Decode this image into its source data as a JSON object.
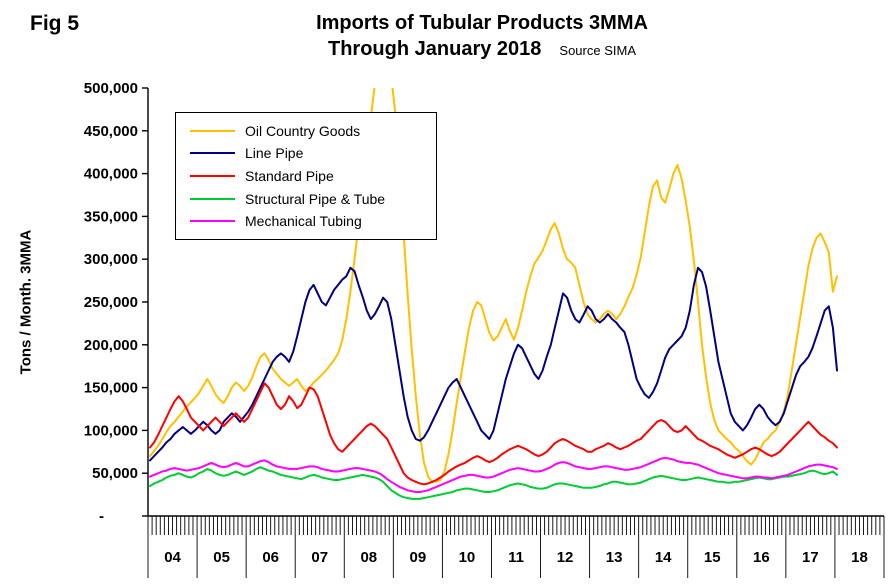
{
  "figure_label": "Fig 5",
  "header": {
    "title_line1": "Imports of Tubular Products 3MMA",
    "title_line2": "Through January 2018",
    "source": "Source SIMA"
  },
  "y_axis_title": "Tons / Month. 3MMA",
  "chart_data": {
    "type": "line",
    "title": "Imports of Tubular Products 3MMA Through January 2018",
    "ylabel": "Tons / Month. 3MMA",
    "ylim": [
      0,
      500000
    ],
    "y_tick_interval": 50000,
    "y_tick_labels": [
      "-",
      "50,000",
      "100,000",
      "150,000",
      "200,000",
      "250,000",
      "300,000",
      "350,000",
      "400,000",
      "450,000",
      "500,000"
    ],
    "x_year_labels": [
      "04",
      "05",
      "06",
      "07",
      "08",
      "09",
      "10",
      "11",
      "12",
      "13",
      "14",
      "15",
      "16",
      "17",
      "18"
    ],
    "x_start": "2004-01",
    "x_end": "2018-01",
    "points_per_year": 12,
    "values_in_thousands": true,
    "values_unit": "thousand tons per month (3-month moving average)",
    "grid": false,
    "legend_position": "upper-left",
    "series": [
      {
        "name": "Oil Country Goods",
        "color": "#FFC000",
        "values": [
          70,
          76,
          82,
          90,
          98,
          105,
          110,
          116,
          122,
          128,
          133,
          138,
          144,
          152,
          160,
          152,
          142,
          136,
          132,
          140,
          150,
          156,
          152,
          146,
          152,
          162,
          175,
          186,
          190,
          182,
          172,
          166,
          160,
          156,
          152,
          156,
          160,
          152,
          146,
          150,
          156,
          160,
          165,
          170,
          176,
          182,
          190,
          205,
          230,
          262,
          300,
          340,
          382,
          425,
          465,
          505,
          525,
          535,
          525,
          512,
          470,
          400,
          330,
          260,
          195,
          140,
          95,
          62,
          46,
          40,
          40,
          42,
          52,
          72,
          100,
          132,
          162,
          192,
          220,
          240,
          250,
          246,
          230,
          214,
          205,
          210,
          220,
          230,
          216,
          206,
          220,
          240,
          262,
          280,
          295,
          302,
          310,
          322,
          335,
          342,
          330,
          312,
          300,
          296,
          290,
          270,
          250,
          236,
          230,
          226,
          230,
          236,
          240,
          236,
          230,
          236,
          245,
          256,
          266,
          282,
          302,
          332,
          362,
          385,
          392,
          372,
          366,
          382,
          400,
          410,
          394,
          368,
          338,
          298,
          250,
          200,
          162,
          132,
          112,
          100,
          95,
          90,
          86,
          80,
          76,
          70,
          64,
          60,
          66,
          76,
          86,
          90,
          96,
          100,
          110,
          122,
          142,
          172,
          202,
          232,
          262,
          292,
          312,
          325,
          330,
          320,
          308,
          262,
          280
        ]
      },
      {
        "name": "Line Pipe",
        "color": "#000080",
        "values": [
          65,
          70,
          75,
          80,
          86,
          90,
          96,
          100,
          104,
          100,
          96,
          100,
          105,
          110,
          106,
          100,
          96,
          100,
          110,
          115,
          120,
          116,
          110,
          116,
          122,
          130,
          140,
          150,
          160,
          170,
          180,
          186,
          190,
          186,
          180,
          192,
          210,
          230,
          250,
          264,
          270,
          260,
          250,
          246,
          255,
          264,
          270,
          276,
          280,
          290,
          286,
          270,
          256,
          240,
          230,
          236,
          245,
          255,
          250,
          230,
          200,
          170,
          140,
          116,
          100,
          90,
          88,
          92,
          100,
          110,
          120,
          130,
          140,
          150,
          156,
          160,
          150,
          140,
          130,
          120,
          110,
          100,
          95,
          90,
          100,
          120,
          140,
          160,
          175,
          190,
          200,
          196,
          186,
          176,
          166,
          160,
          170,
          186,
          200,
          220,
          240,
          260,
          255,
          240,
          230,
          226,
          235,
          245,
          240,
          230,
          226,
          230,
          236,
          230,
          226,
          220,
          215,
          200,
          180,
          160,
          150,
          142,
          138,
          145,
          155,
          170,
          185,
          195,
          200,
          205,
          210,
          220,
          240,
          270,
          290,
          285,
          268,
          240,
          210,
          180,
          160,
          140,
          120,
          110,
          105,
          100,
          106,
          115,
          125,
          130,
          125,
          116,
          110,
          106,
          110,
          120,
          135,
          150,
          165,
          175,
          180,
          186,
          196,
          210,
          225,
          240,
          245,
          220,
          170
        ]
      },
      {
        "name": "Standard Pipe",
        "color": "#FF0000",
        "values": [
          80,
          86,
          95,
          105,
          115,
          125,
          134,
          140,
          134,
          125,
          115,
          110,
          105,
          100,
          105,
          110,
          115,
          110,
          105,
          110,
          115,
          120,
          115,
          110,
          115,
          125,
          135,
          145,
          155,
          150,
          140,
          130,
          125,
          130,
          140,
          134,
          126,
          130,
          140,
          150,
          148,
          140,
          125,
          110,
          95,
          85,
          78,
          75,
          80,
          85,
          90,
          95,
          100,
          105,
          108,
          105,
          100,
          95,
          90,
          80,
          70,
          60,
          50,
          45,
          42,
          40,
          38,
          37,
          38,
          40,
          42,
          45,
          48,
          52,
          55,
          58,
          60,
          62,
          65,
          68,
          70,
          68,
          65,
          63,
          65,
          68,
          72,
          75,
          78,
          80,
          82,
          80,
          78,
          75,
          72,
          70,
          72,
          75,
          80,
          85,
          88,
          90,
          88,
          85,
          82,
          80,
          78,
          75,
          75,
          78,
          80,
          82,
          85,
          83,
          80,
          78,
          80,
          82,
          85,
          88,
          90,
          95,
          100,
          105,
          110,
          112,
          110,
          105,
          100,
          98,
          100,
          105,
          100,
          95,
          90,
          88,
          85,
          82,
          80,
          78,
          75,
          72,
          70,
          68,
          70,
          72,
          75,
          78,
          80,
          78,
          75,
          72,
          70,
          72,
          75,
          80,
          85,
          90,
          95,
          100,
          105,
          110,
          105,
          100,
          95,
          92,
          88,
          85,
          80
        ]
      },
      {
        "name": "Structural Pipe & Tube",
        "color": "#00CC33",
        "values": [
          35,
          38,
          40,
          42,
          45,
          47,
          48,
          50,
          48,
          46,
          45,
          47,
          50,
          52,
          55,
          53,
          50,
          48,
          47,
          48,
          50,
          52,
          50,
          48,
          50,
          52,
          55,
          57,
          55,
          53,
          52,
          50,
          48,
          47,
          46,
          45,
          44,
          43,
          45,
          47,
          48,
          47,
          45,
          44,
          43,
          42,
          42,
          43,
          44,
          45,
          46,
          47,
          48,
          47,
          46,
          45,
          43,
          40,
          35,
          30,
          27,
          24,
          22,
          21,
          20,
          20,
          20,
          21,
          22,
          23,
          24,
          25,
          26,
          27,
          28,
          30,
          31,
          32,
          32,
          31,
          30,
          29,
          28,
          28,
          29,
          30,
          32,
          34,
          36,
          37,
          38,
          37,
          36,
          34,
          33,
          32,
          32,
          33,
          35,
          37,
          38,
          38,
          37,
          36,
          35,
          34,
          33,
          33,
          33,
          34,
          35,
          37,
          38,
          40,
          40,
          39,
          38,
          37,
          37,
          38,
          39,
          41,
          43,
          45,
          46,
          47,
          46,
          45,
          44,
          43,
          42,
          42,
          43,
          44,
          45,
          44,
          43,
          42,
          41,
          40,
          40,
          39,
          39,
          40,
          40,
          41,
          42,
          43,
          44,
          45,
          44,
          43,
          43,
          44,
          45,
          46,
          46,
          47,
          48,
          49,
          50,
          52,
          53,
          52,
          50,
          49,
          50,
          52,
          48
        ]
      },
      {
        "name": "Mechanical Tubing",
        "color": "#FF00FF",
        "values": [
          46,
          48,
          50,
          52,
          53,
          55,
          56,
          55,
          54,
          53,
          54,
          55,
          56,
          58,
          60,
          62,
          60,
          58,
          57,
          58,
          60,
          62,
          60,
          58,
          58,
          60,
          62,
          64,
          65,
          63,
          60,
          58,
          57,
          56,
          55,
          55,
          55,
          56,
          57,
          58,
          58,
          57,
          55,
          54,
          53,
          52,
          52,
          53,
          54,
          55,
          56,
          56,
          55,
          54,
          53,
          52,
          50,
          47,
          43,
          40,
          37,
          34,
          32,
          30,
          29,
          28,
          28,
          29,
          30,
          32,
          34,
          36,
          38,
          40,
          42,
          44,
          46,
          47,
          48,
          48,
          47,
          46,
          45,
          45,
          46,
          48,
          50,
          52,
          54,
          55,
          56,
          55,
          54,
          53,
          52,
          52,
          53,
          55,
          57,
          60,
          62,
          63,
          62,
          60,
          58,
          57,
          56,
          55,
          55,
          56,
          57,
          58,
          58,
          57,
          56,
          55,
          54,
          54,
          55,
          56,
          57,
          59,
          61,
          63,
          65,
          67,
          68,
          67,
          66,
          64,
          63,
          62,
          62,
          61,
          60,
          58,
          56,
          54,
          52,
          50,
          49,
          48,
          47,
          46,
          45,
          44,
          44,
          45,
          46,
          46,
          45,
          45,
          44,
          45,
          46,
          47,
          48,
          50,
          52,
          54,
          56,
          58,
          59,
          60,
          60,
          59,
          58,
          57,
          55
        ]
      }
    ]
  }
}
